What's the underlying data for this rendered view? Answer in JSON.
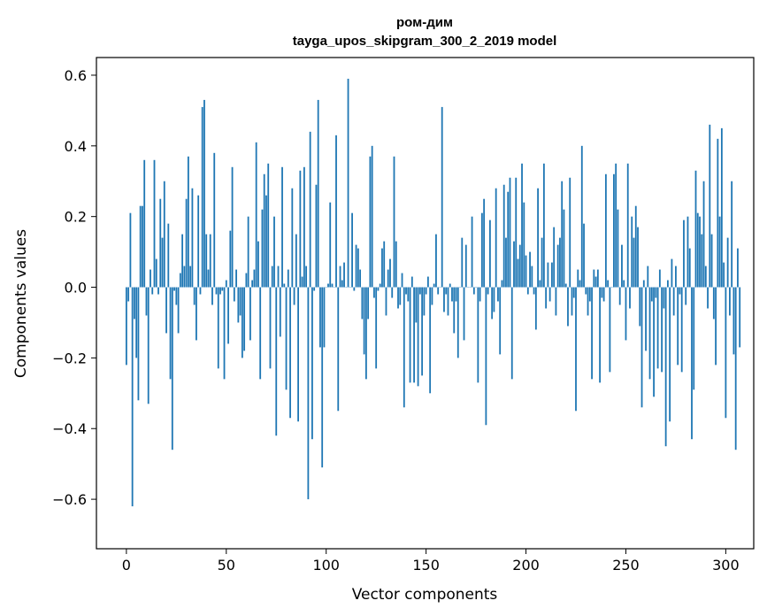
{
  "chart_data": {
    "type": "bar",
    "title_line1": "ром-дим",
    "title_line2": "tayga_upos_skipgram_300_2_2019 model",
    "xlabel": "Vector components",
    "ylabel": "Components values",
    "xlim": [
      -15,
      314
    ],
    "ylim": [
      -0.74,
      0.65
    ],
    "x_ticks": [
      0,
      50,
      100,
      150,
      200,
      250,
      300
    ],
    "x_tick_labels": [
      "0",
      "50",
      "100",
      "150",
      "200",
      "250",
      "300"
    ],
    "y_ticks": [
      -0.6,
      -0.4,
      -0.2,
      0.0,
      0.2,
      0.4,
      0.6
    ],
    "y_tick_labels": [
      "−0.6",
      "−0.4",
      "−0.2",
      "0.0",
      "0.2",
      "0.4",
      "0.6"
    ],
    "bar_color": "#1f77b4",
    "grid": false,
    "values": [
      -0.22,
      -0.04,
      0.21,
      -0.62,
      -0.09,
      -0.2,
      -0.32,
      0.23,
      0.23,
      0.36,
      -0.08,
      -0.33,
      0.05,
      -0.02,
      0.36,
      0.08,
      -0.02,
      0.25,
      0.14,
      0.3,
      -0.13,
      0.18,
      -0.26,
      -0.46,
      -0.01,
      -0.05,
      -0.13,
      0.04,
      0.15,
      0.06,
      0.25,
      0.37,
      0.06,
      0.28,
      -0.05,
      -0.15,
      0.26,
      -0.02,
      0.51,
      0.53,
      0.15,
      0.05,
      0.15,
      -0.05,
      0.38,
      -0.02,
      -0.23,
      -0.02,
      -0.01,
      -0.26,
      0.02,
      -0.16,
      0.16,
      0.34,
      -0.04,
      0.05,
      -0.1,
      -0.08,
      -0.2,
      -0.18,
      0.04,
      0.2,
      -0.15,
      0.02,
      0.05,
      0.41,
      0.13,
      -0.26,
      0.22,
      0.32,
      0.26,
      0.35,
      -0.23,
      0.06,
      0.2,
      -0.42,
      0.06,
      -0.14,
      0.34,
      0.01,
      -0.29,
      0.05,
      -0.37,
      0.28,
      -0.05,
      0.15,
      -0.38,
      0.33,
      0.03,
      0.34,
      0.06,
      -0.6,
      0.44,
      -0.43,
      -0.01,
      0.29,
      0.53,
      -0.17,
      -0.51,
      -0.17,
      0.0,
      0.01,
      0.24,
      0.01,
      0.0,
      0.43,
      -0.35,
      0.06,
      0.02,
      0.07,
      0.0,
      0.59,
      0.0,
      0.21,
      -0.01,
      0.12,
      0.11,
      0.05,
      -0.09,
      -0.19,
      -0.26,
      -0.09,
      0.37,
      0.4,
      -0.03,
      -0.23,
      -0.01,
      0.01,
      0.11,
      0.13,
      -0.08,
      0.05,
      0.08,
      -0.03,
      0.37,
      0.13,
      -0.06,
      -0.05,
      0.04,
      -0.34,
      -0.02,
      -0.04,
      -0.27,
      0.03,
      -0.27,
      -0.1,
      -0.28,
      -0.02,
      -0.25,
      -0.08,
      -0.02,
      0.03,
      -0.3,
      -0.05,
      0.01,
      0.15,
      -0.02,
      0.0,
      0.51,
      -0.07,
      -0.02,
      -0.08,
      0.01,
      -0.04,
      -0.13,
      -0.04,
      -0.2,
      0.0,
      0.14,
      -0.15,
      0.12,
      0.0,
      0.0,
      0.2,
      -0.02,
      0.0,
      -0.27,
      -0.04,
      0.21,
      0.25,
      -0.39,
      -0.02,
      0.19,
      -0.09,
      -0.07,
      0.28,
      -0.04,
      -0.19,
      0.02,
      0.29,
      0.14,
      0.27,
      0.31,
      -0.26,
      0.13,
      0.31,
      0.08,
      0.12,
      0.35,
      0.24,
      0.09,
      -0.02,
      0.1,
      0.06,
      -0.02,
      -0.12,
      0.28,
      0.02,
      0.14,
      0.35,
      -0.06,
      0.07,
      -0.04,
      0.07,
      0.17,
      -0.08,
      0.12,
      0.14,
      0.3,
      0.22,
      0.01,
      -0.11,
      0.31,
      -0.08,
      -0.03,
      -0.35,
      0.05,
      0.02,
      0.4,
      0.18,
      -0.02,
      -0.08,
      -0.04,
      -0.26,
      0.05,
      0.03,
      0.05,
      -0.27,
      -0.03,
      -0.04,
      0.32,
      0.02,
      -0.24,
      0.0,
      0.32,
      0.35,
      0.22,
      -0.05,
      0.12,
      0.02,
      -0.15,
      0.35,
      -0.06,
      0.2,
      0.14,
      0.23,
      0.17,
      -0.11,
      -0.34,
      0.02,
      -0.18,
      0.06,
      -0.26,
      -0.04,
      -0.31,
      -0.03,
      -0.23,
      0.05,
      -0.24,
      -0.06,
      -0.45,
      0.02,
      -0.38,
      0.08,
      -0.08,
      0.06,
      -0.22,
      -0.02,
      -0.24,
      0.19,
      -0.05,
      0.2,
      0.11,
      -0.43,
      -0.29,
      0.33,
      0.21,
      0.2,
      0.15,
      0.3,
      0.06,
      -0.06,
      0.46,
      0.15,
      -0.09,
      -0.22,
      0.42,
      0.2,
      0.45,
      0.07,
      -0.37,
      0.14,
      -0.08,
      0.3,
      -0.19,
      -0.46,
      0.11,
      -0.17
    ]
  }
}
